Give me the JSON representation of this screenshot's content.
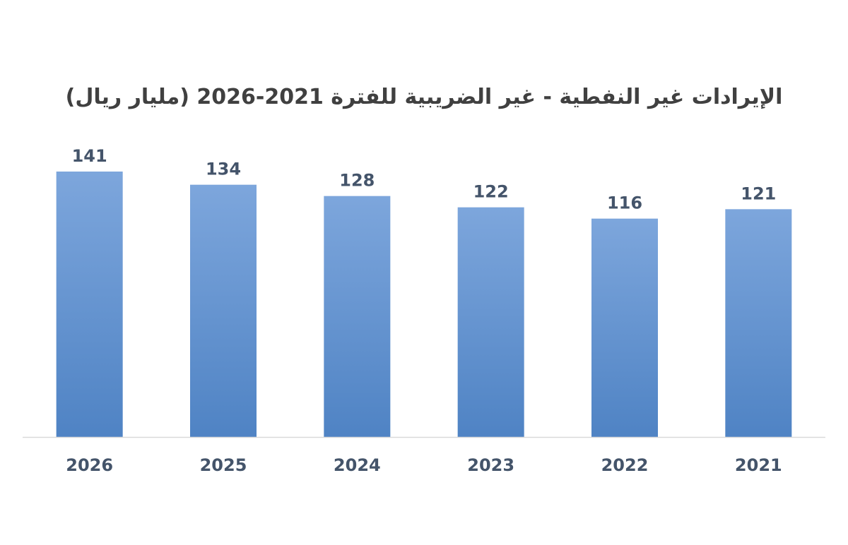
{
  "chart_data": {
    "type": "bar",
    "title": "الإيرادات غير النفطية - غير الضريبية للفترة 2021-2026 (مليار ريال)",
    "categories": [
      "2026",
      "2025",
      "2024",
      "2023",
      "2022",
      "2021"
    ],
    "values": [
      141,
      134,
      128,
      122,
      116,
      121
    ],
    "ylim": [
      0,
      150
    ],
    "grid": false,
    "legend": "none",
    "colors": {
      "bar_top": "#7da6dc",
      "bar_bottom": "#4f83c4",
      "baseline": "#d9d9d9",
      "label": "#44546a",
      "title": "#404040"
    }
  }
}
